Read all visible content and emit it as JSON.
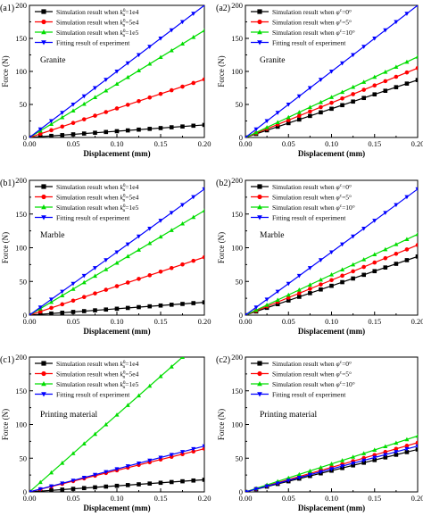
{
  "chart_data": [
    {
      "type": "line",
      "panel_label": "(a1)",
      "material_label": "Granite",
      "xlabel": "Displacement (mm)",
      "ylabel": "Force (N)",
      "xlim": [
        0,
        0.2
      ],
      "ylim": [
        0,
        200
      ],
      "xticks": [
        "0.00",
        "0.05",
        "0.10",
        "0.15",
        "0.20"
      ],
      "yticks": [
        "0",
        "50",
        "100",
        "150",
        "200"
      ],
      "legend": "top-left",
      "series": [
        {
          "name": "Simulation result when ",
          "param": "k",
          "sup": "0",
          "sub": "n",
          "value": "=1e4",
          "color": "#000000",
          "marker": "square",
          "x": [
            0,
            0.2
          ],
          "y": [
            0,
            19
          ]
        },
        {
          "name": "Simulation result when ",
          "param": "k",
          "sup": "0",
          "sub": "n",
          "value": "=5e4",
          "color": "#ff0000",
          "marker": "circle",
          "x": [
            0,
            0.2
          ],
          "y": [
            0,
            88
          ]
        },
        {
          "name": "Simulation result when ",
          "param": "k",
          "sup": "0",
          "sub": "n",
          "value": "=1e5",
          "color": "#00dd00",
          "marker": "triangle-up",
          "x": [
            0,
            0.2
          ],
          "y": [
            0,
            162
          ]
        },
        {
          "name": "Fitting result of experiment",
          "color": "#0000ff",
          "marker": "triangle-down",
          "x": [
            0,
            0.2
          ],
          "y": [
            0,
            200
          ]
        }
      ]
    },
    {
      "type": "line",
      "panel_label": "(a2)",
      "material_label": "Granite",
      "xlabel": "Displacement (mm)",
      "ylabel": "Force (N)",
      "xlim": [
        0,
        0.2
      ],
      "ylim": [
        0,
        200
      ],
      "xticks": [
        "0.00",
        "0.05",
        "0.10",
        "0.15",
        "0.20"
      ],
      "yticks": [
        "0",
        "50",
        "100",
        "150",
        "200"
      ],
      "legend": "top-left",
      "series": [
        {
          "name": "Simulation result when ",
          "param": "φ",
          "sup": "c",
          "value": "=0°",
          "color": "#000000",
          "marker": "square",
          "x": [
            0,
            0.2
          ],
          "y": [
            0,
            87
          ]
        },
        {
          "name": "Simulation result when ",
          "param": "φ",
          "sup": "c",
          "value": "=5°",
          "color": "#ff0000",
          "marker": "circle",
          "x": [
            0,
            0.2
          ],
          "y": [
            0,
            105
          ]
        },
        {
          "name": "Simulation result when ",
          "param": "φ",
          "sup": "c",
          "value": "=10°",
          "color": "#00dd00",
          "marker": "triangle-up",
          "x": [
            0,
            0.2
          ],
          "y": [
            0,
            122
          ]
        },
        {
          "name": "Fitting result of experiment",
          "color": "#0000ff",
          "marker": "triangle-down",
          "x": [
            0,
            0.2
          ],
          "y": [
            0,
            200
          ]
        }
      ]
    },
    {
      "type": "line",
      "panel_label": "(b1)",
      "material_label": "Marble",
      "xlabel": "Displacement (mm)",
      "ylabel": "Force (N)",
      "xlim": [
        0,
        0.2
      ],
      "ylim": [
        0,
        200
      ],
      "xticks": [
        "0.00",
        "0.05",
        "0.10",
        "0.15",
        "0.20"
      ],
      "yticks": [
        "0",
        "50",
        "100",
        "150",
        "200"
      ],
      "legend": "top-left",
      "series": [
        {
          "name": "Simulation result when ",
          "param": "k",
          "sup": "0",
          "sub": "n",
          "value": "=1e4",
          "color": "#000000",
          "marker": "square",
          "x": [
            0,
            0.2
          ],
          "y": [
            0,
            19
          ]
        },
        {
          "name": "Simulation result when ",
          "param": "k",
          "sup": "0",
          "sub": "n",
          "value": "=5e4",
          "color": "#ff0000",
          "marker": "circle",
          "x": [
            0,
            0.2
          ],
          "y": [
            0,
            86
          ]
        },
        {
          "name": "Simulation result when ",
          "param": "k",
          "sup": "0",
          "sub": "n",
          "value": "=1e5",
          "color": "#00dd00",
          "marker": "triangle-up",
          "x": [
            0,
            0.2
          ],
          "y": [
            0,
            155
          ]
        },
        {
          "name": "Fitting result of experiment",
          "color": "#0000ff",
          "marker": "triangle-down",
          "x": [
            0,
            0.2
          ],
          "y": [
            0,
            187
          ]
        }
      ]
    },
    {
      "type": "line",
      "panel_label": "(b2)",
      "material_label": "Marble",
      "xlabel": "Displacement (mm)",
      "ylabel": "Force (N)",
      "xlim": [
        0,
        0.2
      ],
      "ylim": [
        0,
        200
      ],
      "xticks": [
        "0.00",
        "0.05",
        "0.10",
        "0.15",
        "0.20"
      ],
      "yticks": [
        "0",
        "50",
        "100",
        "150",
        "200"
      ],
      "legend": "top-left",
      "series": [
        {
          "name": "Simulation result when ",
          "param": "φ",
          "sup": "c",
          "value": "=0°",
          "color": "#000000",
          "marker": "square",
          "x": [
            0,
            0.2
          ],
          "y": [
            0,
            87
          ]
        },
        {
          "name": "Simulation result when ",
          "param": "φ",
          "sup": "c",
          "value": "=5°",
          "color": "#ff0000",
          "marker": "circle",
          "x": [
            0,
            0.2
          ],
          "y": [
            0,
            104
          ]
        },
        {
          "name": "Simulation result when ",
          "param": "φ",
          "sup": "c",
          "value": "=10°",
          "color": "#00dd00",
          "marker": "triangle-up",
          "x": [
            0,
            0.2
          ],
          "y": [
            0,
            120
          ]
        },
        {
          "name": "Fitting result of experiment",
          "color": "#0000ff",
          "marker": "triangle-down",
          "x": [
            0,
            0.2
          ],
          "y": [
            0,
            187
          ]
        }
      ]
    },
    {
      "type": "line",
      "panel_label": "(c1)",
      "material_label": "Printing material",
      "xlabel": "Displacement (mm)",
      "ylabel": "Force (N)",
      "xlim": [
        0,
        0.2
      ],
      "ylim": [
        0,
        200
      ],
      "xticks": [
        "0.00",
        "0.05",
        "0.10",
        "0.15",
        "0.20"
      ],
      "yticks": [
        "0",
        "50",
        "100",
        "150",
        "200"
      ],
      "legend": "top-left",
      "series": [
        {
          "name": "Simulation result when ",
          "param": "k",
          "sup": "0",
          "sub": "n",
          "value": "=1e4",
          "color": "#000000",
          "marker": "square",
          "x": [
            0,
            0.2
          ],
          "y": [
            0,
            18
          ]
        },
        {
          "name": "Simulation result when ",
          "param": "k",
          "sup": "0",
          "sub": "n",
          "value": "=5e4",
          "color": "#ff0000",
          "marker": "circle",
          "x": [
            0,
            0.2
          ],
          "y": [
            0,
            64
          ]
        },
        {
          "name": "Simulation result when ",
          "param": "k",
          "sup": "0",
          "sub": "n",
          "value": "=1e5",
          "color": "#00dd00",
          "marker": "triangle-up",
          "x": [
            0,
            0.175
          ],
          "y": [
            0,
            200
          ]
        },
        {
          "name": "Fitting result of experiment",
          "color": "#0000ff",
          "marker": "triangle-down",
          "x": [
            0,
            0.2
          ],
          "y": [
            0,
            68
          ]
        }
      ]
    },
    {
      "type": "line",
      "panel_label": "(c2)",
      "material_label": "Printing material",
      "xlabel": "Displacement (mm)",
      "ylabel": "Force (N)",
      "xlim": [
        0,
        0.2
      ],
      "ylim": [
        0,
        200
      ],
      "xticks": [
        "0.00",
        "0.05",
        "0.10",
        "0.15",
        "0.20"
      ],
      "yticks": [
        "0",
        "50",
        "100",
        "150",
        "200"
      ],
      "legend": "top-left",
      "series": [
        {
          "name": "Simulation result when ",
          "param": "φ",
          "sup": "c",
          "value": "=0°",
          "color": "#000000",
          "marker": "square",
          "x": [
            0,
            0.2
          ],
          "y": [
            0,
            63
          ]
        },
        {
          "name": "Simulation result when ",
          "param": "φ",
          "sup": "c",
          "value": "=5°",
          "color": "#ff0000",
          "marker": "circle",
          "x": [
            0,
            0.2
          ],
          "y": [
            0,
            73
          ]
        },
        {
          "name": "Simulation result when ",
          "param": "φ",
          "sup": "c",
          "value": "=10°",
          "color": "#00dd00",
          "marker": "triangle-up",
          "x": [
            0,
            0.2
          ],
          "y": [
            0,
            83
          ]
        },
        {
          "name": "Fitting result of experiment",
          "color": "#0000ff",
          "marker": "triangle-down",
          "x": [
            0,
            0.2
          ],
          "y": [
            0,
            68
          ]
        }
      ]
    }
  ]
}
